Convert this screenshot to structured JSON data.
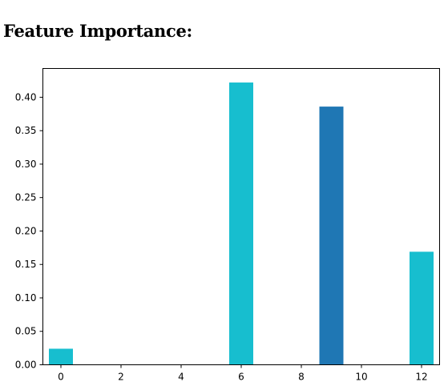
{
  "page": {
    "heading": "Feature Importance:"
  },
  "chart_data": {
    "type": "bar",
    "title": "",
    "xlabel": "",
    "ylabel": "",
    "x": [
      0,
      6,
      9,
      12
    ],
    "values": [
      0.024,
      0.422,
      0.386,
      0.169
    ],
    "bar_colors": [
      "#17becf",
      "#17becf",
      "#1f77b4",
      "#17becf"
    ],
    "xlim": [
      -0.6,
      12.6
    ],
    "ylim": [
      0,
      0.443
    ],
    "xticks": [
      0,
      2,
      4,
      6,
      8,
      10,
      12
    ],
    "xtick_labels": [
      "0",
      "2",
      "4",
      "6",
      "8",
      "10",
      "12"
    ],
    "yticks": [
      0.0,
      0.05,
      0.1,
      0.15,
      0.2,
      0.25,
      0.3,
      0.35,
      0.4
    ],
    "ytick_labels": [
      "0.00",
      "0.05",
      "0.10",
      "0.15",
      "0.20",
      "0.25",
      "0.30",
      "0.35",
      "0.40"
    ],
    "bar_width": 0.8,
    "grid": false,
    "legend": "none"
  }
}
